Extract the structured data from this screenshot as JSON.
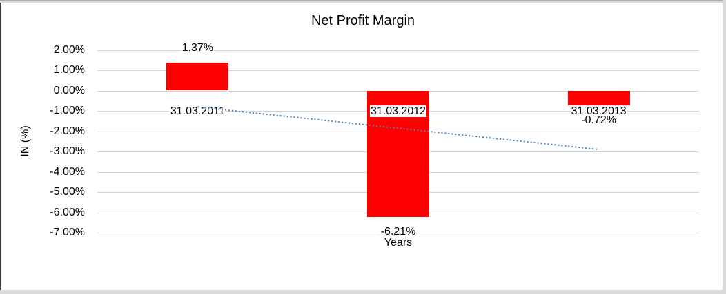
{
  "chart_data": {
    "type": "bar",
    "title": "Net Profit Margin",
    "xlabel": "Years",
    "ylabel": "IN (%)",
    "categories": [
      "31.03.2011",
      "31.03.2012",
      "31.03.2013"
    ],
    "values": [
      1.37,
      -6.21,
      -0.72
    ],
    "data_labels": [
      "1.37%",
      "-6.21%",
      "-0.72%"
    ],
    "y_ticks": [
      2,
      1,
      0,
      -1,
      -2,
      -3,
      -4,
      -5,
      -6,
      -7
    ],
    "y_tick_labels": [
      "2.00%",
      "1.00%",
      "0.00%",
      "-1.00%",
      "-2.00%",
      "-3.00%",
      "-4.00%",
      "-5.00%",
      "-6.00%",
      "-7.00%"
    ],
    "ylim": [
      -7,
      2
    ],
    "grid": true,
    "legend": false,
    "bar_color": "#ff0000",
    "gridline_color": "#d3d3d3",
    "trendline": {
      "type": "linear",
      "style": "dotted",
      "color": "#4f81bd"
    }
  }
}
